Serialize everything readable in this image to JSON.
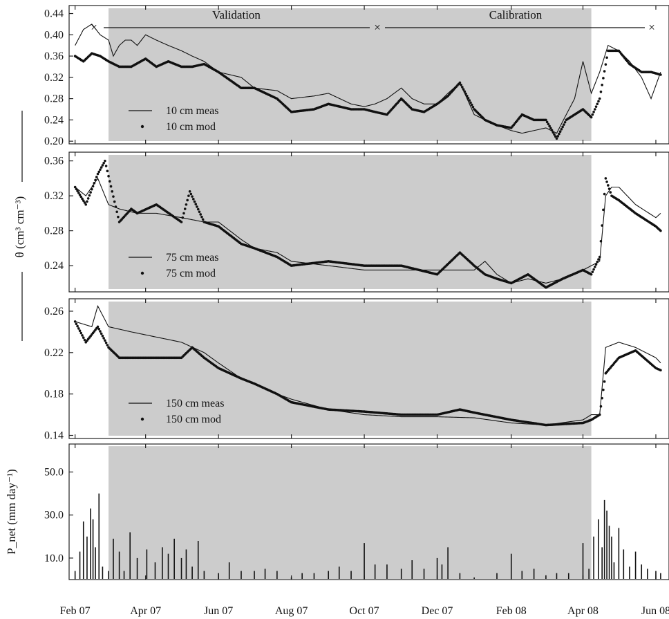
{
  "chart_data": {
    "type": "line",
    "x_axis": {
      "tick_labels": [
        "Feb 07",
        "Apr 07",
        "Jun 07",
        "Aug 07",
        "Oct 07",
        "Dec 07",
        "Feb 08",
        "Apr 08",
        "Jun 08"
      ],
      "tick_dates": [
        "2007-02-01",
        "2007-04-01",
        "2007-06-01",
        "2007-08-01",
        "2007-10-01",
        "2007-12-01",
        "2008-02-01",
        "2008-04-01",
        "2008-06-01"
      ],
      "range": [
        "2007-01-27",
        "2008-06-12"
      ]
    },
    "periods": {
      "labels": [
        "Validation",
        "Calibration"
      ],
      "markers": [
        "2007-02-01",
        "2007-10-05",
        "2008-06-01"
      ],
      "shaded_range": [
        "2007-03-01",
        "2008-04-08"
      ],
      "shade_color": "#cccccc"
    },
    "theta_axis_label": "θ (cm³ cm⁻³)",
    "panels": [
      {
        "id": "10cm",
        "yticks": [
          0.2,
          0.24,
          0.28,
          0.32,
          0.36,
          0.4,
          0.44
        ],
        "tick_labels": [
          "0.20",
          "0.24",
          "0.28",
          "0.32",
          "0.36",
          "0.40",
          "0.44"
        ],
        "ylim": [
          0.195,
          0.455
        ],
        "series": [
          {
            "name": "10 cm meas",
            "style": "line",
            "x": [
              "2007-02-01",
              "2007-02-08",
              "2007-02-15",
              "2007-02-22",
              "2007-03-01",
              "2007-03-05",
              "2007-03-10",
              "2007-03-15",
              "2007-03-20",
              "2007-03-25",
              "2007-04-01",
              "2007-04-10",
              "2007-04-20",
              "2007-05-01",
              "2007-05-10",
              "2007-05-20",
              "2007-06-01",
              "2007-06-20",
              "2007-07-01",
              "2007-07-20",
              "2007-08-01",
              "2007-08-20",
              "2007-09-01",
              "2007-09-20",
              "2007-10-01",
              "2007-10-10",
              "2007-10-20",
              "2007-11-01",
              "2007-11-10",
              "2007-11-20",
              "2007-12-01",
              "2007-12-10",
              "2007-12-20",
              "2008-01-01",
              "2008-01-10",
              "2008-01-20",
              "2008-02-01",
              "2008-02-10",
              "2008-02-20",
              "2008-03-01",
              "2008-03-10",
              "2008-03-18",
              "2008-03-25",
              "2008-04-01",
              "2008-04-08",
              "2008-04-15",
              "2008-04-22",
              "2008-05-01",
              "2008-05-10",
              "2008-05-20",
              "2008-05-28",
              "2008-06-05"
            ],
            "y": [
              0.38,
              0.41,
              0.42,
              0.4,
              0.39,
              0.36,
              0.38,
              0.39,
              0.39,
              0.38,
              0.4,
              0.39,
              0.38,
              0.37,
              0.36,
              0.35,
              0.33,
              0.32,
              0.3,
              0.295,
              0.28,
              0.285,
              0.29,
              0.27,
              0.265,
              0.27,
              0.28,
              0.3,
              0.28,
              0.27,
              0.27,
              0.29,
              0.31,
              0.25,
              0.24,
              0.23,
              0.22,
              0.215,
              0.22,
              0.225,
              0.215,
              0.25,
              0.28,
              0.35,
              0.29,
              0.33,
              0.38,
              0.37,
              0.35,
              0.32,
              0.28,
              0.33
            ]
          },
          {
            "name": "10 cm mod",
            "style": "dots",
            "x": [
              "2007-02-01",
              "2007-02-08",
              "2007-02-15",
              "2007-02-22",
              "2007-03-01",
              "2007-03-10",
              "2007-03-20",
              "2007-04-01",
              "2007-04-10",
              "2007-04-20",
              "2007-05-01",
              "2007-05-10",
              "2007-05-20",
              "2007-06-01",
              "2007-06-20",
              "2007-07-01",
              "2007-07-20",
              "2007-08-01",
              "2007-08-20",
              "2007-09-01",
              "2007-09-20",
              "2007-10-01",
              "2007-10-10",
              "2007-10-20",
              "2007-11-01",
              "2007-11-10",
              "2007-11-20",
              "2007-12-01",
              "2007-12-10",
              "2007-12-20",
              "2008-01-01",
              "2008-01-10",
              "2008-01-20",
              "2008-02-01",
              "2008-02-10",
              "2008-02-20",
              "2008-03-01",
              "2008-03-10",
              "2008-03-18",
              "2008-03-25",
              "2008-04-01",
              "2008-04-08",
              "2008-04-15",
              "2008-04-22",
              "2008-05-01",
              "2008-05-10",
              "2008-05-20",
              "2008-05-28",
              "2008-06-05"
            ],
            "y": [
              0.36,
              0.35,
              0.365,
              0.36,
              0.35,
              0.34,
              0.34,
              0.355,
              0.34,
              0.35,
              0.34,
              0.34,
              0.345,
              0.33,
              0.3,
              0.3,
              0.28,
              0.255,
              0.26,
              0.27,
              0.26,
              0.26,
              0.255,
              0.25,
              0.28,
              0.26,
              0.255,
              0.27,
              0.285,
              0.31,
              0.26,
              0.24,
              0.23,
              0.225,
              0.25,
              0.24,
              0.24,
              0.205,
              0.24,
              0.25,
              0.26,
              0.245,
              0.28,
              0.37,
              0.37,
              0.345,
              0.33,
              0.33,
              0.325
            ]
          }
        ]
      },
      {
        "id": "75cm",
        "yticks": [
          0.24,
          0.28,
          0.32,
          0.36
        ],
        "tick_labels": [
          "0.24",
          "0.28",
          "0.32",
          "0.36"
        ],
        "ylim": [
          0.21,
          0.37
        ],
        "series": [
          {
            "name": "75 cm meas",
            "style": "line",
            "x": [
              "2007-02-01",
              "2007-02-10",
              "2007-02-20",
              "2007-03-01",
              "2007-03-10",
              "2007-03-25",
              "2007-04-10",
              "2007-05-01",
              "2007-05-20",
              "2007-06-01",
              "2007-06-20",
              "2007-07-01",
              "2007-07-20",
              "2007-08-01",
              "2007-09-01",
              "2007-10-01",
              "2007-11-01",
              "2007-12-01",
              "2008-01-01",
              "2008-01-10",
              "2008-01-20",
              "2008-02-01",
              "2008-02-15",
              "2008-03-01",
              "2008-03-15",
              "2008-04-01",
              "2008-04-08",
              "2008-04-15",
              "2008-04-20",
              "2008-04-25",
              "2008-05-01",
              "2008-05-15",
              "2008-06-01",
              "2008-06-05"
            ],
            "y": [
              0.33,
              0.32,
              0.34,
              0.31,
              0.305,
              0.3,
              0.3,
              0.295,
              0.29,
              0.29,
              0.27,
              0.26,
              0.255,
              0.245,
              0.24,
              0.235,
              0.235,
              0.235,
              0.235,
              0.245,
              0.23,
              0.22,
              0.225,
              0.22,
              0.225,
              0.235,
              0.24,
              0.245,
              0.32,
              0.33,
              0.33,
              0.31,
              0.295,
              0.3
            ]
          },
          {
            "name": "75 cm mod",
            "style": "dots",
            "x": [
              "2007-02-01",
              "2007-02-10",
              "2007-02-20",
              "2007-02-26",
              "2007-03-10",
              "2007-03-20",
              "2007-03-25",
              "2007-04-10",
              "2007-05-01",
              "2007-05-08",
              "2007-05-20",
              "2007-06-01",
              "2007-06-20",
              "2007-07-01",
              "2007-07-20",
              "2007-08-01",
              "2007-09-01",
              "2007-10-01",
              "2007-11-01",
              "2007-12-01",
              "2007-12-20",
              "2008-01-01",
              "2008-01-10",
              "2008-01-20",
              "2008-02-01",
              "2008-02-15",
              "2008-03-01",
              "2008-03-15",
              "2008-04-01",
              "2008-04-08",
              "2008-04-15",
              "2008-04-20",
              "2008-04-25",
              "2008-05-01",
              "2008-05-15",
              "2008-06-01",
              "2008-06-05"
            ],
            "y": [
              0.33,
              0.31,
              0.345,
              0.36,
              0.29,
              0.305,
              0.3,
              0.31,
              0.29,
              0.325,
              0.29,
              0.285,
              0.265,
              0.26,
              0.25,
              0.24,
              0.245,
              0.24,
              0.24,
              0.23,
              0.255,
              0.24,
              0.23,
              0.225,
              0.22,
              0.23,
              0.215,
              0.225,
              0.235,
              0.23,
              0.25,
              0.34,
              0.32,
              0.315,
              0.3,
              0.285,
              0.28
            ]
          }
        ]
      },
      {
        "id": "150cm",
        "yticks": [
          0.14,
          0.18,
          0.22,
          0.26
        ],
        "tick_labels": [
          "0.14",
          "0.18",
          "0.22",
          "0.26"
        ],
        "ylim": [
          0.137,
          0.272
        ],
        "series": [
          {
            "name": "150 cm meas",
            "style": "line",
            "x": [
              "2007-02-01",
              "2007-02-15",
              "2007-02-20",
              "2007-03-01",
              "2007-03-20",
              "2007-04-10",
              "2007-05-01",
              "2007-05-20",
              "2007-06-01",
              "2007-06-20",
              "2007-07-01",
              "2007-07-20",
              "2007-08-01",
              "2007-09-01",
              "2007-10-01",
              "2007-11-01",
              "2007-12-01",
              "2008-01-01",
              "2008-02-01",
              "2008-03-01",
              "2008-04-01",
              "2008-04-08",
              "2008-04-15",
              "2008-04-20",
              "2008-05-01",
              "2008-05-15",
              "2008-06-01",
              "2008-06-05"
            ],
            "y": [
              0.25,
              0.245,
              0.265,
              0.245,
              0.24,
              0.235,
              0.23,
              0.22,
              0.21,
              0.195,
              0.19,
              0.18,
              0.175,
              0.165,
              0.16,
              0.158,
              0.158,
              0.157,
              0.152,
              0.15,
              0.155,
              0.16,
              0.16,
              0.225,
              0.23,
              0.225,
              0.215,
              0.21
            ]
          },
          {
            "name": "150 cm mod",
            "style": "dots",
            "x": [
              "2007-02-01",
              "2007-02-10",
              "2007-02-20",
              "2007-03-01",
              "2007-03-10",
              "2007-03-20",
              "2007-04-01",
              "2007-05-01",
              "2007-05-10",
              "2007-05-20",
              "2007-06-01",
              "2007-06-20",
              "2007-07-01",
              "2007-07-20",
              "2007-08-01",
              "2007-09-01",
              "2007-10-01",
              "2007-11-01",
              "2007-12-01",
              "2007-12-20",
              "2008-01-01",
              "2008-02-01",
              "2008-03-01",
              "2008-04-01",
              "2008-04-08",
              "2008-04-15",
              "2008-04-20",
              "2008-05-01",
              "2008-05-15",
              "2008-06-01",
              "2008-06-05"
            ],
            "y": [
              0.25,
              0.23,
              0.245,
              0.225,
              0.215,
              0.215,
              0.215,
              0.215,
              0.225,
              0.215,
              0.205,
              0.195,
              0.19,
              0.18,
              0.172,
              0.165,
              0.163,
              0.16,
              0.16,
              0.165,
              0.162,
              0.155,
              0.15,
              0.152,
              0.155,
              0.16,
              0.2,
              0.215,
              0.222,
              0.205,
              0.203
            ]
          }
        ]
      },
      {
        "id": "pnet",
        "type": "bar",
        "axis_label": "P_net (mm day⁻¹)",
        "yticks": [
          10,
          30,
          50
        ],
        "tick_labels": [
          "10.0",
          "30.0",
          "50.0"
        ],
        "ylim": [
          0,
          63
        ],
        "series": [
          {
            "name": "P_net",
            "style": "bars",
            "x": [
              "2007-02-01",
              "2007-02-05",
              "2007-02-08",
              "2007-02-11",
              "2007-02-14",
              "2007-02-16",
              "2007-02-18",
              "2007-02-21",
              "2007-02-24",
              "2007-03-01",
              "2007-03-05",
              "2007-03-10",
              "2007-03-14",
              "2007-03-19",
              "2007-03-25",
              "2007-04-02",
              "2007-04-09",
              "2007-04-15",
              "2007-04-20",
              "2007-04-25",
              "2007-05-01",
              "2007-05-05",
              "2007-05-10",
              "2007-05-15",
              "2007-05-20",
              "2007-06-01",
              "2007-06-10",
              "2007-06-20",
              "2007-07-01",
              "2007-07-10",
              "2007-07-20",
              "2007-08-01",
              "2007-08-10",
              "2007-08-20",
              "2007-09-01",
              "2007-09-10",
              "2007-09-20",
              "2007-10-01",
              "2007-10-10",
              "2007-10-20",
              "2007-11-01",
              "2007-11-10",
              "2007-11-20",
              "2007-12-01",
              "2007-12-05",
              "2007-12-10",
              "2007-12-20",
              "2008-01-01",
              "2008-01-20",
              "2008-02-01",
              "2008-02-10",
              "2008-02-20",
              "2008-03-01",
              "2008-03-10",
              "2008-03-20",
              "2008-04-01",
              "2008-04-06",
              "2008-04-10",
              "2008-04-14",
              "2008-04-17",
              "2008-04-19",
              "2008-04-21",
              "2008-04-23",
              "2008-04-25",
              "2008-04-27",
              "2008-05-01",
              "2008-05-05",
              "2008-05-10",
              "2008-05-15",
              "2008-05-20",
              "2008-05-25",
              "2008-06-01",
              "2008-06-05"
            ],
            "y": [
              4,
              13,
              27,
              20,
              33,
              28,
              15,
              40,
              6,
              4,
              19,
              13,
              4,
              22,
              10,
              14,
              8,
              15,
              12,
              19,
              10,
              14,
              6,
              18,
              4,
              3,
              8,
              4,
              4,
              5,
              4,
              1,
              3,
              3,
              4,
              6,
              4,
              17,
              7,
              7,
              5,
              9,
              5,
              10,
              7,
              15,
              3,
              1,
              3,
              12,
              4,
              5,
              2,
              3,
              3,
              17,
              5,
              20,
              28,
              15,
              37,
              32,
              25,
              20,
              8,
              24,
              14,
              6,
              13,
              7,
              5,
              4,
              3
            ]
          }
        ]
      }
    ]
  }
}
